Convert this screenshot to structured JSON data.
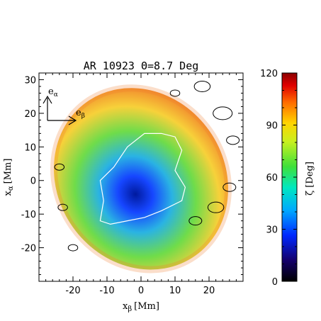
{
  "chart_data": {
    "type": "heatmap",
    "title": "AR 10923 Θ=8.7 Deg",
    "xlabel": "x",
    "xlabel_sub": "β",
    "xlabel_unit": "[Mm]",
    "ylabel": "x",
    "ylabel_sub": "α",
    "ylabel_unit": "[Mm]",
    "xlim": [
      -30,
      30
    ],
    "ylim": [
      -30,
      32
    ],
    "xticks": [
      -20,
      -10,
      0,
      10,
      20
    ],
    "yticks": [
      -20,
      -10,
      0,
      10,
      20,
      30
    ],
    "grid": false,
    "colorbar": {
      "label": "ζ [Deg]",
      "range": [
        0,
        120
      ],
      "ticks": [
        0,
        30,
        60,
        90,
        120
      ],
      "colormap": "rainbow (black-blue-cyan-green-yellow-red-darkred)"
    },
    "basis_vectors": {
      "vertical": "e",
      "vertical_sub": "α",
      "horizontal": "e",
      "horizontal_sub": "β"
    },
    "colors": {
      "ellipse_edge": "#f07a2a",
      "outer_ring": "#f7d13a",
      "mid": "#6fdc4a",
      "inner": "#2ab3e3",
      "core": "#1646ff",
      "umbra": "#001a9e",
      "contour_inner": "#ffffff",
      "contour_outer": "#000000"
    }
  }
}
